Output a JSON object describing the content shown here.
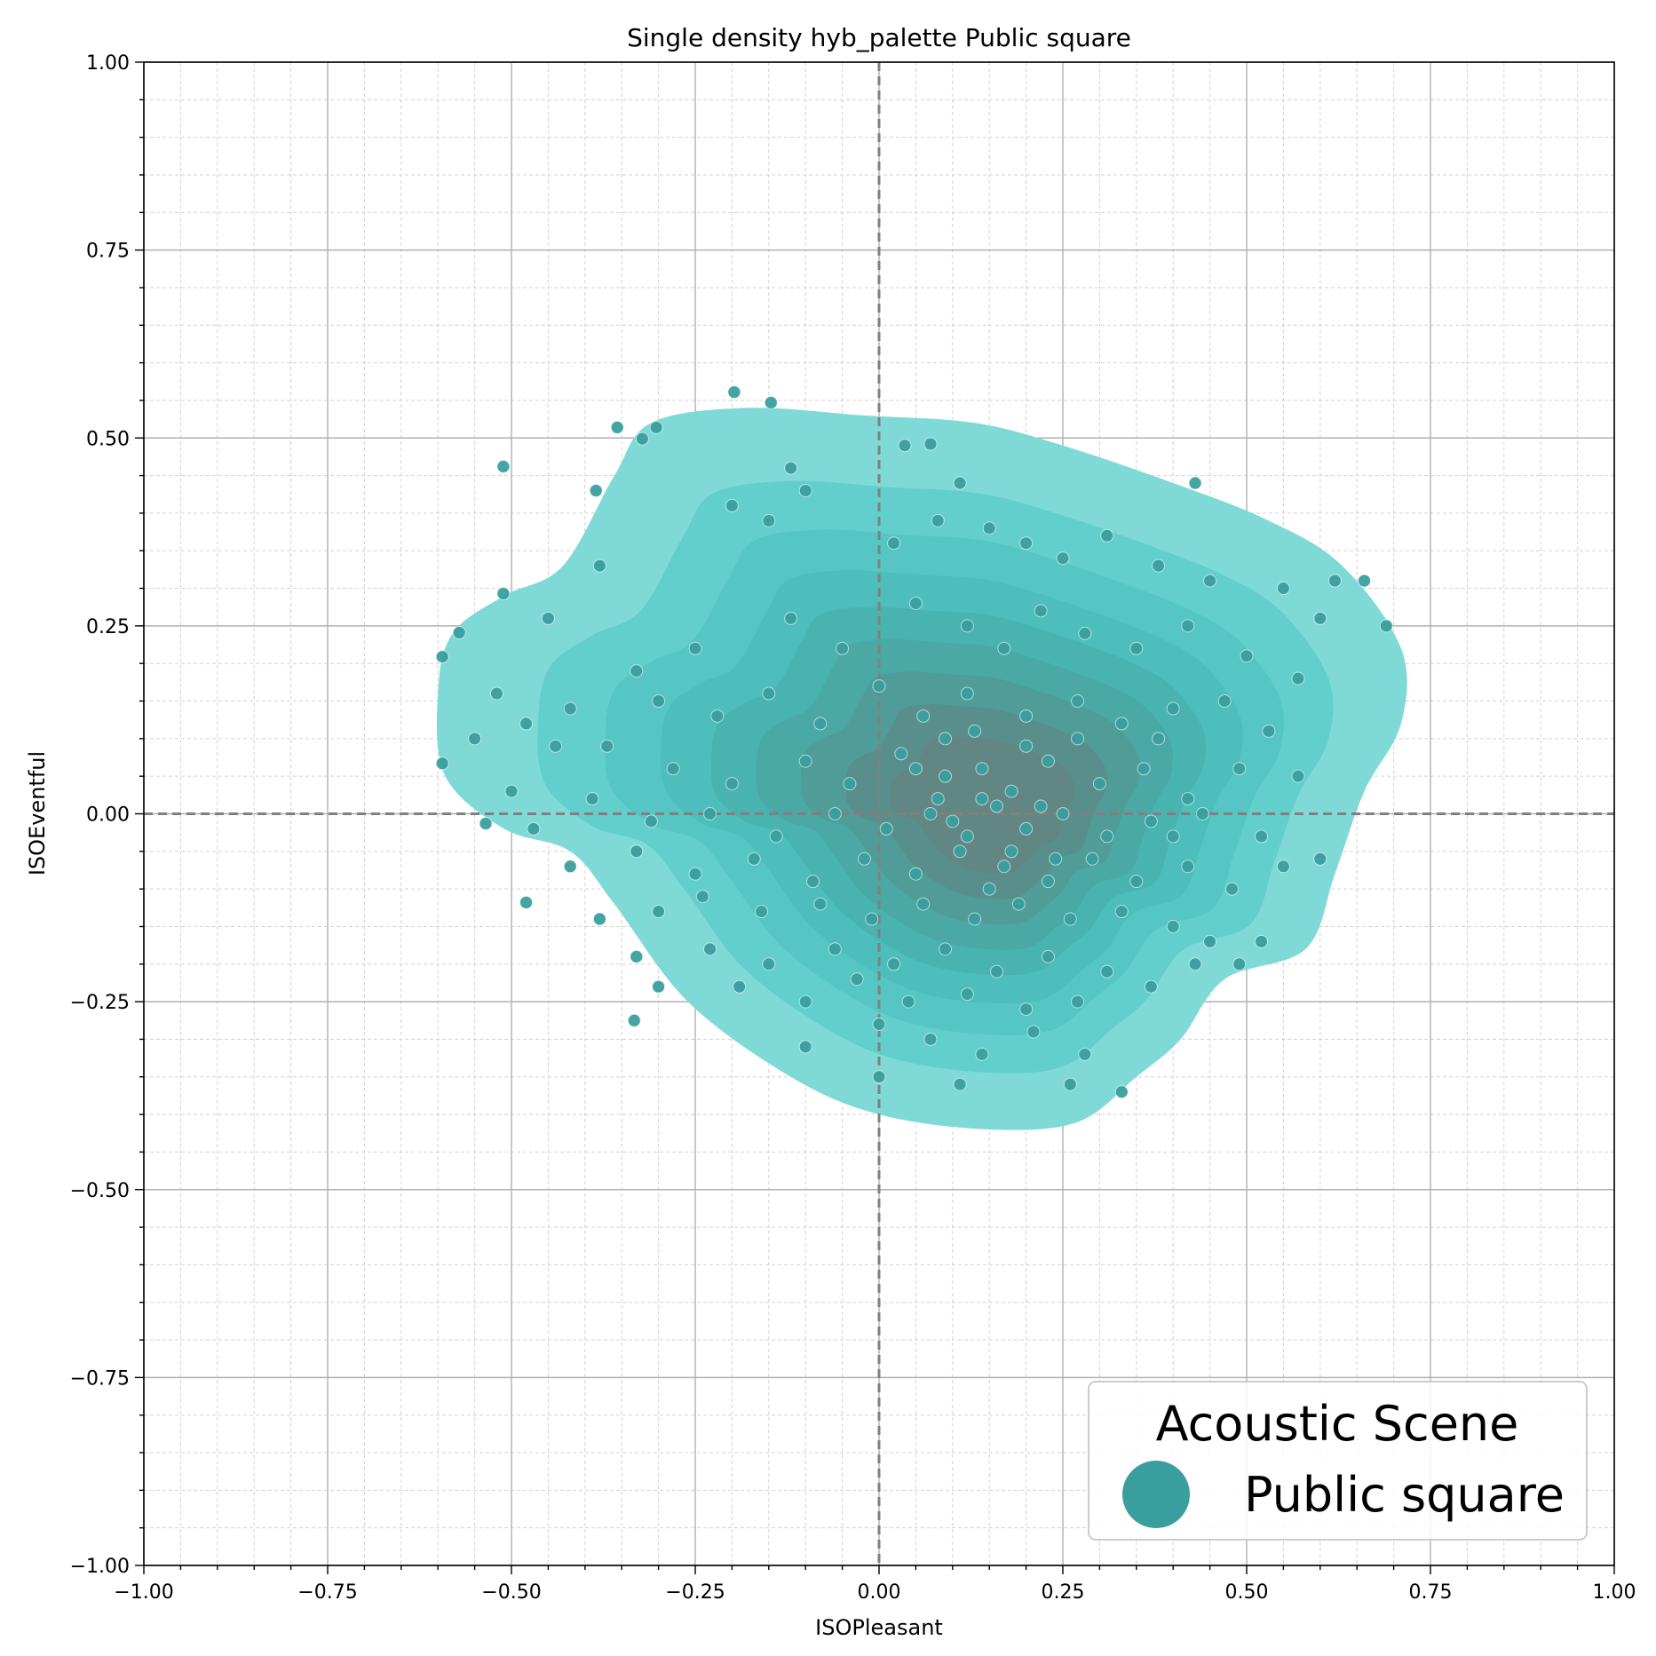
{
  "chart_data": {
    "type": "scatter",
    "title": "Single density hyb_palette Public square",
    "xlabel": "ISOPleasant",
    "ylabel": "ISOEventful",
    "xlim": [
      -1.0,
      1.0
    ],
    "ylim": [
      -1.0,
      1.0
    ],
    "xticks": [
      "−1.00",
      "−0.75",
      "−0.50",
      "−0.25",
      "0.00",
      "0.25",
      "0.50",
      "0.75",
      "1.00"
    ],
    "yticks": [
      "1.00",
      "0.75",
      "0.50",
      "0.25",
      "0.00",
      "−0.25",
      "−0.50",
      "−0.75",
      "−1.00"
    ],
    "grid": "major and minor",
    "density": {
      "kind": "filled kernel density contours",
      "levels": 10,
      "color": "#3fc6c2",
      "peak": [
        0.16,
        0.0
      ]
    },
    "legend": {
      "title": "Acoustic Scene",
      "placement": "lower-right",
      "entries": [
        {
          "label": "Public square",
          "color": "#3a9e9e"
        }
      ]
    },
    "series": [
      {
        "name": "Public square",
        "color": "#3a9e9e",
        "points": [
          [
            -0.197,
            0.561
          ],
          [
            -0.147,
            0.547
          ],
          [
            -0.356,
            0.514
          ],
          [
            -0.303,
            0.514
          ],
          [
            -0.322,
            0.499
          ],
          [
            -0.511,
            0.462
          ],
          [
            -0.385,
            0.43
          ],
          [
            -0.511,
            0.293
          ],
          [
            -0.571,
            0.241
          ],
          [
            -0.594,
            0.209
          ],
          [
            -0.594,
            0.067
          ],
          [
            -0.535,
            -0.013
          ],
          [
            -0.48,
            -0.118
          ],
          [
            -0.333,
            -0.275
          ],
          [
            0.07,
            0.492
          ],
          [
            0.035,
            0.49
          ],
          [
            -0.12,
            0.46
          ],
          [
            -0.1,
            0.43
          ],
          [
            0.11,
            0.44
          ],
          [
            0.43,
            0.44
          ],
          [
            -0.2,
            0.41
          ],
          [
            -0.15,
            0.39
          ],
          [
            0.02,
            0.36
          ],
          [
            0.08,
            0.39
          ],
          [
            0.15,
            0.38
          ],
          [
            0.2,
            0.36
          ],
          [
            0.25,
            0.34
          ],
          [
            0.31,
            0.37
          ],
          [
            0.38,
            0.33
          ],
          [
            0.45,
            0.31
          ],
          [
            0.55,
            0.3
          ],
          [
            0.62,
            0.31
          ],
          [
            0.66,
            0.31
          ],
          [
            0.69,
            0.25
          ],
          [
            -0.45,
            0.26
          ],
          [
            -0.38,
            0.33
          ],
          [
            -0.33,
            0.19
          ],
          [
            -0.25,
            0.22
          ],
          [
            -0.12,
            0.26
          ],
          [
            -0.05,
            0.22
          ],
          [
            0.05,
            0.28
          ],
          [
            0.12,
            0.25
          ],
          [
            0.17,
            0.22
          ],
          [
            0.22,
            0.27
          ],
          [
            0.28,
            0.24
          ],
          [
            0.35,
            0.22
          ],
          [
            0.42,
            0.25
          ],
          [
            0.5,
            0.21
          ],
          [
            0.57,
            0.18
          ],
          [
            0.6,
            0.26
          ],
          [
            -0.52,
            0.16
          ],
          [
            -0.48,
            0.12
          ],
          [
            -0.42,
            0.14
          ],
          [
            -0.3,
            0.15
          ],
          [
            -0.22,
            0.13
          ],
          [
            -0.15,
            0.16
          ],
          [
            -0.08,
            0.12
          ],
          [
            0.0,
            0.17
          ],
          [
            0.06,
            0.13
          ],
          [
            0.12,
            0.16
          ],
          [
            0.2,
            0.13
          ],
          [
            0.27,
            0.15
          ],
          [
            0.33,
            0.12
          ],
          [
            0.4,
            0.14
          ],
          [
            0.47,
            0.15
          ],
          [
            0.53,
            0.11
          ],
          [
            -0.55,
            0.1
          ],
          [
            -0.5,
            0.03
          ],
          [
            -0.44,
            0.09
          ],
          [
            -0.37,
            0.09
          ],
          [
            -0.28,
            0.06
          ],
          [
            -0.2,
            0.04
          ],
          [
            -0.1,
            0.07
          ],
          [
            -0.04,
            0.04
          ],
          [
            0.03,
            0.08
          ],
          [
            0.09,
            0.05
          ],
          [
            0.14,
            0.06
          ],
          [
            0.18,
            0.03
          ],
          [
            0.23,
            0.07
          ],
          [
            0.3,
            0.04
          ],
          [
            0.36,
            0.06
          ],
          [
            0.42,
            0.02
          ],
          [
            0.49,
            0.06
          ],
          [
            0.57,
            0.05
          ],
          [
            -0.47,
            -0.02
          ],
          [
            -0.39,
            0.02
          ],
          [
            -0.31,
            -0.01
          ],
          [
            -0.23,
            0.0
          ],
          [
            -0.14,
            -0.03
          ],
          [
            -0.06,
            0.0
          ],
          [
            0.01,
            -0.02
          ],
          [
            0.07,
            0.0
          ],
          [
            0.12,
            -0.03
          ],
          [
            0.16,
            0.01
          ],
          [
            0.2,
            -0.02
          ],
          [
            0.25,
            0.0
          ],
          [
            0.31,
            -0.03
          ],
          [
            0.37,
            -0.01
          ],
          [
            0.44,
            0.0
          ],
          [
            0.52,
            -0.03
          ],
          [
            0.6,
            -0.06
          ],
          [
            -0.42,
            -0.07
          ],
          [
            -0.33,
            -0.05
          ],
          [
            -0.25,
            -0.08
          ],
          [
            -0.17,
            -0.06
          ],
          [
            -0.09,
            -0.09
          ],
          [
            -0.02,
            -0.06
          ],
          [
            0.05,
            -0.08
          ],
          [
            0.11,
            -0.05
          ],
          [
            0.17,
            -0.07
          ],
          [
            0.23,
            -0.09
          ],
          [
            0.29,
            -0.06
          ],
          [
            0.35,
            -0.09
          ],
          [
            0.42,
            -0.07
          ],
          [
            0.48,
            -0.1
          ],
          [
            0.55,
            -0.07
          ],
          [
            -0.38,
            -0.14
          ],
          [
            -0.3,
            -0.13
          ],
          [
            -0.24,
            -0.11
          ],
          [
            -0.16,
            -0.13
          ],
          [
            -0.08,
            -0.12
          ],
          [
            -0.01,
            -0.14
          ],
          [
            0.06,
            -0.12
          ],
          [
            0.13,
            -0.14
          ],
          [
            0.19,
            -0.12
          ],
          [
            0.26,
            -0.14
          ],
          [
            0.33,
            -0.13
          ],
          [
            0.4,
            -0.15
          ],
          [
            0.45,
            -0.17
          ],
          [
            0.52,
            -0.17
          ],
          [
            -0.33,
            -0.19
          ],
          [
            -0.23,
            -0.18
          ],
          [
            -0.15,
            -0.2
          ],
          [
            -0.06,
            -0.18
          ],
          [
            0.02,
            -0.2
          ],
          [
            0.09,
            -0.18
          ],
          [
            0.16,
            -0.21
          ],
          [
            0.23,
            -0.19
          ],
          [
            0.31,
            -0.21
          ],
          [
            0.37,
            -0.23
          ],
          [
            0.43,
            -0.2
          ],
          [
            0.49,
            -0.2
          ],
          [
            -0.3,
            -0.23
          ],
          [
            -0.19,
            -0.23
          ],
          [
            -0.1,
            -0.25
          ],
          [
            -0.03,
            -0.22
          ],
          [
            0.04,
            -0.25
          ],
          [
            0.12,
            -0.24
          ],
          [
            0.2,
            -0.26
          ],
          [
            0.27,
            -0.25
          ],
          [
            -0.1,
            -0.31
          ],
          [
            0.0,
            -0.28
          ],
          [
            0.07,
            -0.3
          ],
          [
            0.14,
            -0.32
          ],
          [
            0.21,
            -0.29
          ],
          [
            0.28,
            -0.32
          ],
          [
            0.0,
            -0.35
          ],
          [
            0.11,
            -0.36
          ],
          [
            0.26,
            -0.36
          ],
          [
            0.33,
            -0.37
          ],
          [
            0.38,
            0.1
          ],
          [
            0.4,
            -0.03
          ],
          [
            0.08,
            0.02
          ],
          [
            0.1,
            -0.01
          ],
          [
            0.14,
            0.02
          ],
          [
            0.18,
            -0.05
          ],
          [
            0.22,
            0.01
          ],
          [
            0.15,
            -0.1
          ],
          [
            0.09,
            0.1
          ],
          [
            0.2,
            0.09
          ],
          [
            0.24,
            -0.06
          ],
          [
            0.05,
            0.06
          ],
          [
            0.27,
            0.1
          ],
          [
            0.13,
            0.11
          ]
        ]
      }
    ]
  }
}
